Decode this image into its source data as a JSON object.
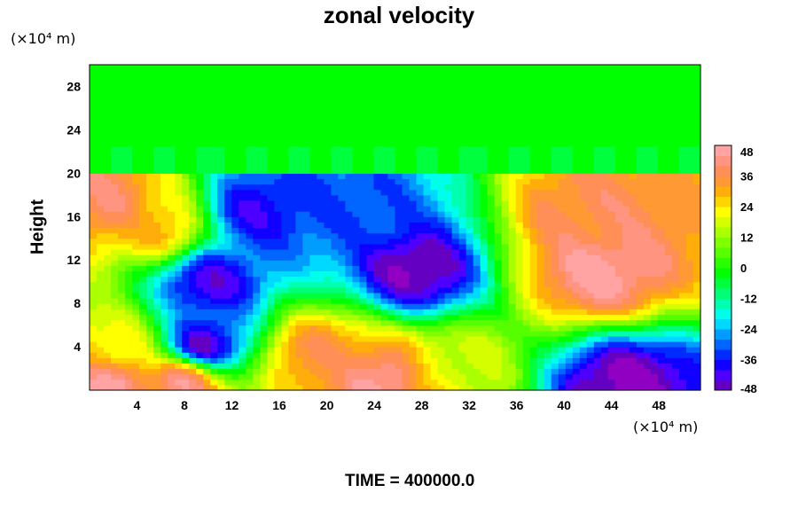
{
  "chart_data": {
    "type": "heatmap",
    "title": "zonal velocity",
    "ylabel": "Height",
    "x_unit": "(×10⁴ m)",
    "y_unit": "(×10⁴ m)",
    "footer": "TIME = 400000.0",
    "xlim": [
      0,
      51.5
    ],
    "ylim": [
      0,
      30
    ],
    "x_ticks": [
      "4",
      "8",
      "12",
      "16",
      "20",
      "24",
      "28",
      "32",
      "36",
      "40",
      "44",
      "48"
    ],
    "y_ticks": [
      "4",
      "8",
      "12",
      "16",
      "20",
      "24",
      "28"
    ],
    "colorbar": {
      "min": -48,
      "max": 48,
      "step": 4,
      "tick_labels": [
        "48",
        "36",
        "24",
        "12",
        "0",
        "-12",
        "-24",
        "-36",
        "-48"
      ]
    },
    "features": [
      {
        "x": 27.5,
        "y": 11,
        "value": -48
      },
      {
        "x": 22,
        "y": 17,
        "value": -30
      },
      {
        "x": 14,
        "y": 16.5,
        "value": -38
      },
      {
        "x": 10,
        "y": 10,
        "value": -42
      },
      {
        "x": 9.5,
        "y": 4,
        "value": -48
      },
      {
        "x": 43,
        "y": 11,
        "value": 48
      },
      {
        "x": 42,
        "y": 16,
        "value": 40
      },
      {
        "x": 45,
        "y": 0.5,
        "value": -48
      },
      {
        "x": 25,
        "y": 1,
        "value": 48
      },
      {
        "x": 8,
        "y": 1,
        "value": 48
      },
      {
        "x": 2,
        "y": 0.5,
        "value": 48
      },
      {
        "x": 1.5,
        "y": 17.5,
        "value": 42
      },
      {
        "x": 6,
        "y": 15,
        "value": 32
      },
      {
        "x": 19,
        "y": 3.5,
        "value": 38
      },
      {
        "x": 2,
        "y": 4,
        "value": 26
      },
      {
        "x": 30,
        "y": 2,
        "value": 20
      }
    ],
    "upper_layer": {
      "y_from": 20,
      "y_to": 30,
      "value": -2
    }
  }
}
